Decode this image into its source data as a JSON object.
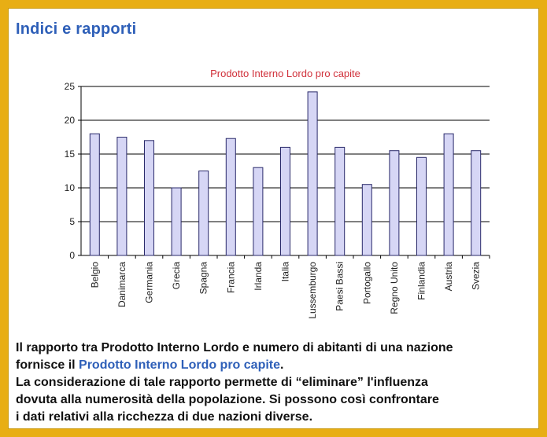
{
  "heading": "Indici e rapporti",
  "chart_data": {
    "type": "bar",
    "title": "Prodotto Interno Lordo pro capite",
    "categories": [
      "Belgio",
      "Danimarca",
      "Germania",
      "Grecia",
      "Spagna",
      "Francia",
      "Irlanda",
      "Italia",
      "Lussemburgo",
      "Paesi Bassi",
      "Portogallo",
      "Regno Unito",
      "Finlandia",
      "Austria",
      "Svezia"
    ],
    "values": [
      18,
      17.5,
      17,
      10,
      12.5,
      17.3,
      13,
      16,
      24.2,
      16,
      10.5,
      15.5,
      14.5,
      18,
      15.5
    ],
    "ylim": [
      0,
      25
    ],
    "yticks": [
      0,
      5,
      10,
      15,
      20,
      25
    ],
    "xlabel": "",
    "ylabel": "",
    "grid": true,
    "colors": {
      "bar_fill": "#d6d6f5",
      "bar_stroke": "#2a2a6a",
      "grid": "#000000"
    }
  },
  "text": {
    "line1": "Il rapporto tra Prodotto Interno Lordo e numero di abitanti di una nazione",
    "line2_prefix": "fornisce il ",
    "line2_link": "Prodotto Interno Lordo pro capite",
    "line2_suffix": ".",
    "line3": "La considerazione di tale rapporto permette di “eliminare” l'influenza",
    "line4": "dovuta alla numerosità della popolazione. Si possono così confrontare",
    "line5": "i dati relativi alla ricchezza di due nazioni diverse."
  },
  "colors": {
    "frame": "#e8ae14",
    "heading": "#2e5fb8",
    "chart_title": "#d0303a",
    "link": "#2e5fb8"
  }
}
